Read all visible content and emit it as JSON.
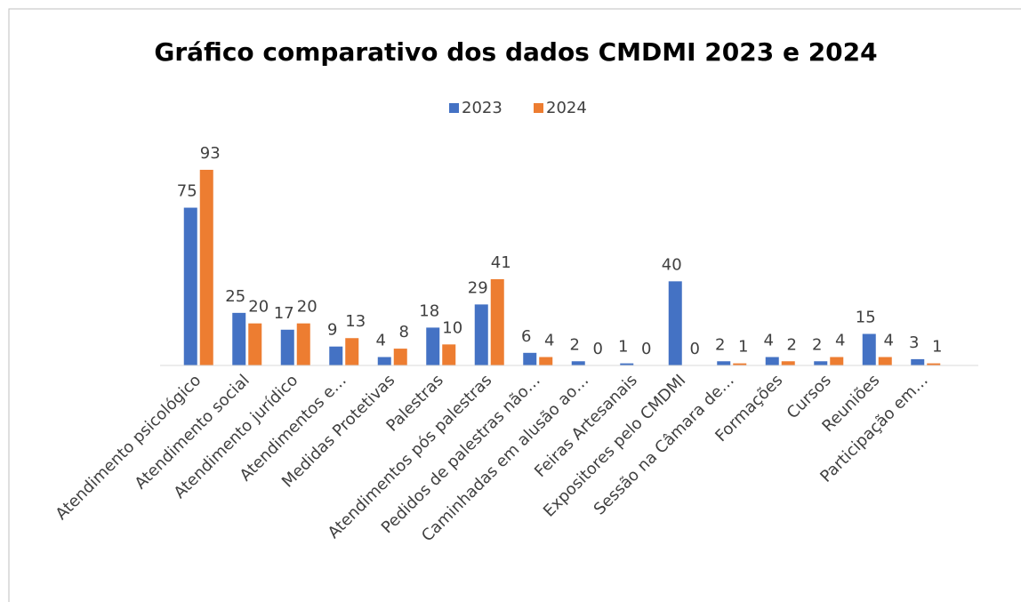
{
  "chart_data": {
    "type": "bar",
    "title": "Gráfico comparativo dos dados CMDMI 2023 e 2024",
    "categories": [
      "Atendimento psicológico",
      "Atendimento social",
      "Atendimento jurídico",
      "Atendimentos e…",
      "Medidas Protetivas",
      "Palestras",
      "Atendimentos pós palestras",
      "Pedidos de palestras não…",
      "Caminhadas em alusão ao…",
      "Feiras Artesanais",
      "Expositores pelo CMDMI",
      "Sessão na Câmara de…",
      "Formações",
      "Cursos",
      "Reuniões",
      "Participação em…"
    ],
    "series": [
      {
        "name": "2023",
        "color": "#4472c4",
        "values": [
          75,
          25,
          17,
          9,
          4,
          18,
          29,
          6,
          2,
          1,
          40,
          2,
          4,
          2,
          15,
          3
        ]
      },
      {
        "name": "2024",
        "color": "#ed7d31",
        "values": [
          93,
          20,
          20,
          13,
          8,
          10,
          41,
          4,
          0,
          0,
          0,
          1,
          2,
          4,
          4,
          1
        ]
      }
    ],
    "ylim": [
      0,
      100
    ],
    "legend": "top"
  }
}
